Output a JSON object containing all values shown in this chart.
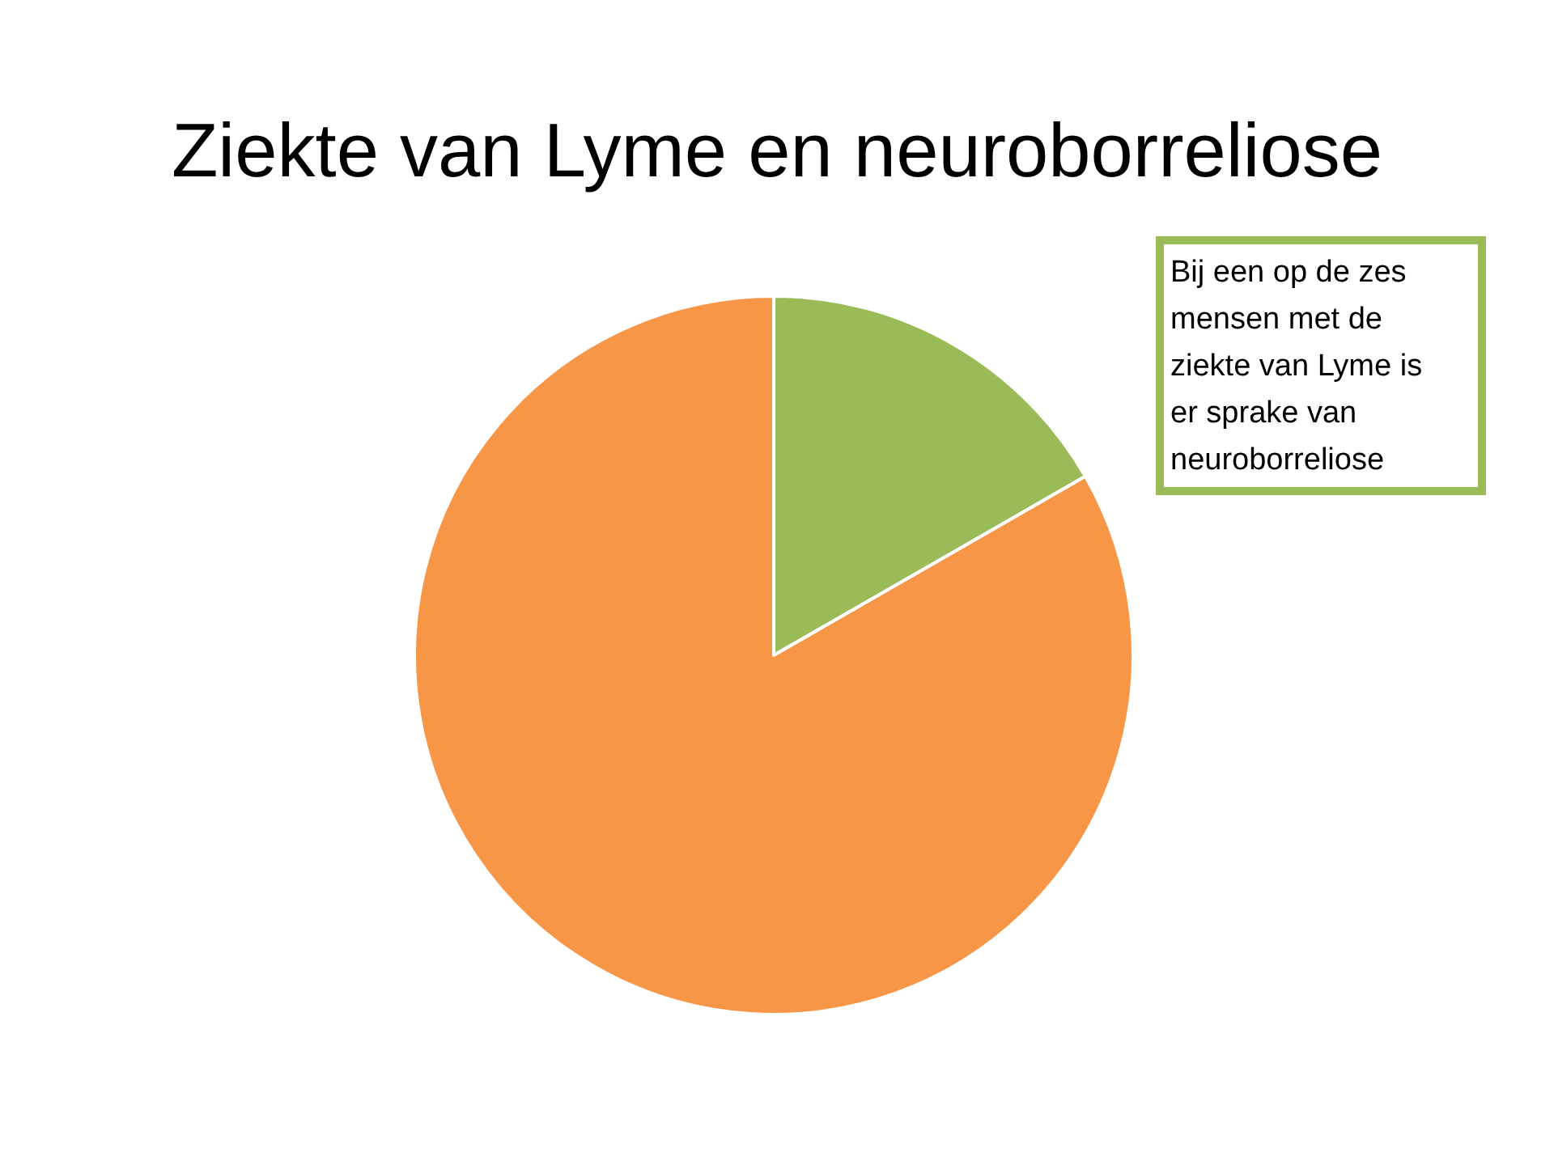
{
  "chart_data": {
    "type": "pie",
    "title": "Ziekte van Lyme en neuroborreliose",
    "categories": [
      null,
      null
    ],
    "values": [
      16.7,
      83.3
    ],
    "colors": [
      "#9bbb59",
      "#f79646"
    ],
    "annotations": [
      "Bij een op de zes mensen met de ziekte van Lyme is er sprake van neuroborreliose"
    ]
  }
}
